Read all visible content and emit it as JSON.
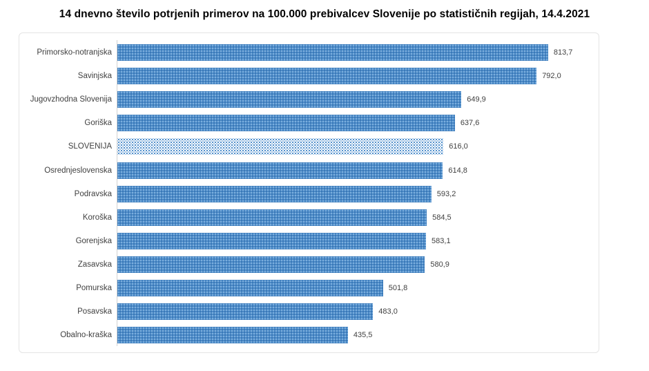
{
  "title": "14 dnevno število potrjenih primerov na 100.000 prebivalcev Slovenije po statističnih regijah, 14.4.2021",
  "colors": {
    "title-text": "#000000",
    "label-text": "#404040",
    "frame-border": "#e4e4e4",
    "axis-line": "#d2d2d2",
    "bar-base": "#4b8bc9",
    "bar-dot-light": "#7fb0dd",
    "bar-dot-dark": "#3a77b5",
    "hl-dot": "#4f8fcb",
    "hl-dot-light": "#a9c9e8"
  },
  "chart_data": {
    "type": "bar",
    "orientation": "horizontal",
    "title": "14 dnevno število potrjenih primerov na 100.000 prebivalcev Slovenije po statističnih regijah, 14.4.2021",
    "xlabel": "",
    "ylabel": "",
    "xlim": [
      0,
      900
    ],
    "grid": false,
    "legend": false,
    "value_label_format": "decimal comma, one decimal place",
    "highlighted_category": "SLOVENIJA",
    "rows": [
      {
        "category": "Primorsko-notranjska",
        "value": 813.7,
        "value_label": "813,7",
        "highlight": false
      },
      {
        "category": "Savinjska",
        "value": 792.0,
        "value_label": "792,0",
        "highlight": false
      },
      {
        "category": "Jugovzhodna Slovenija",
        "value": 649.9,
        "value_label": "649,9",
        "highlight": false
      },
      {
        "category": "Goriška",
        "value": 637.6,
        "value_label": "637,6",
        "highlight": false
      },
      {
        "category": "SLOVENIJA",
        "value": 616.0,
        "value_label": "616,0",
        "highlight": true
      },
      {
        "category": "Osrednjeslovenska",
        "value": 614.8,
        "value_label": "614,8",
        "highlight": false
      },
      {
        "category": "Podravska",
        "value": 593.2,
        "value_label": "593,2",
        "highlight": false
      },
      {
        "category": "Koroška",
        "value": 584.5,
        "value_label": "584,5",
        "highlight": false
      },
      {
        "category": "Gorenjska",
        "value": 583.1,
        "value_label": "583,1",
        "highlight": false
      },
      {
        "category": "Zasavska",
        "value": 580.9,
        "value_label": "580,9",
        "highlight": false
      },
      {
        "category": "Pomurska",
        "value": 501.8,
        "value_label": "501,8",
        "highlight": false
      },
      {
        "category": "Posavska",
        "value": 483.0,
        "value_label": "483,0",
        "highlight": false
      },
      {
        "category": "Obalno-kraška",
        "value": 435.5,
        "value_label": "435,5",
        "highlight": false
      }
    ]
  }
}
